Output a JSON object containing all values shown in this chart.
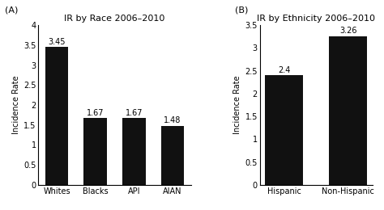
{
  "panel_A": {
    "title": "IR by Race 2006–2010",
    "label": "(A)",
    "categories": [
      "Whites",
      "Blacks",
      "API",
      "AIAN"
    ],
    "values": [
      3.45,
      1.67,
      1.67,
      1.48
    ],
    "ylim": [
      0,
      4
    ],
    "yticks": [
      0,
      0.5,
      1.0,
      1.5,
      2.0,
      2.5,
      3.0,
      3.5,
      4.0
    ],
    "ytick_labels": [
      "0",
      "0.5",
      "1",
      "1.5",
      "2",
      "2.5",
      "3",
      "3.5",
      "4"
    ],
    "ylabel": "Incidence Rate",
    "bar_color": "#111111"
  },
  "panel_B": {
    "title": "IR by Ethnicity 2006–2010",
    "label": "(B)",
    "categories": [
      "Hispanic",
      "Non-Hispanic"
    ],
    "values": [
      2.4,
      3.26
    ],
    "ylim": [
      0,
      3.5
    ],
    "yticks": [
      0,
      0.5,
      1.0,
      1.5,
      2.0,
      2.5,
      3.0,
      3.5
    ],
    "ytick_labels": [
      "0",
      "0.5",
      "1",
      "1.5",
      "2",
      "2.5",
      "3",
      "3.5"
    ],
    "ylabel": "Incidence Rate",
    "bar_color": "#111111"
  },
  "annotation_fontsize": 7,
  "tick_fontsize": 7,
  "label_fontsize": 7,
  "title_fontsize": 8,
  "panel_label_fontsize": 8
}
